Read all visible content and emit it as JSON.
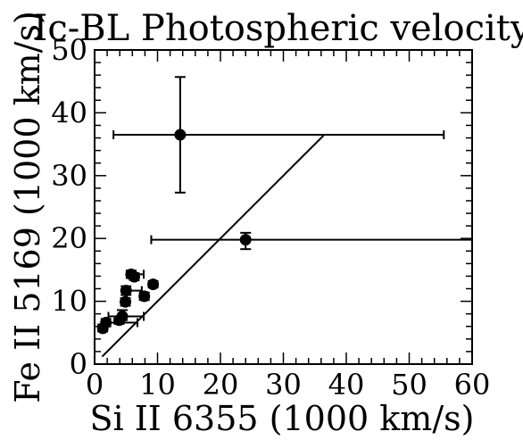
{
  "chart_data": {
    "type": "scatter",
    "title": "Ic-BL Photospheric velocity",
    "xlabel": "Si II 6355 (1000 km/s)",
    "ylabel": "Fe II 5169 (1000 km/s)",
    "xlim": [
      0,
      60
    ],
    "ylim": [
      0,
      50
    ],
    "x_ticks": [
      0,
      10,
      20,
      30,
      40,
      50,
      60
    ],
    "y_ticks": [
      0,
      10,
      20,
      30,
      40,
      50
    ],
    "x_tick_labels": [
      "0",
      "10",
      "20",
      "30",
      "40",
      "50",
      "60"
    ],
    "y_tick_labels": [
      "0",
      "10",
      "20",
      "30",
      "40",
      "50"
    ],
    "grid": false,
    "marker_color": "#000000",
    "points": [
      {
        "x": 13.6,
        "y": 36.5,
        "x_err": [
          3.0,
          55.5
        ],
        "y_err": [
          27.3,
          45.7
        ]
      },
      {
        "x": 24.0,
        "y": 19.8,
        "x_err": [
          9.0,
          60.0
        ],
        "y_err": [
          18.3,
          20.9
        ]
      },
      {
        "x": 5.8,
        "y": 14.3,
        "x_err": [
          5.3,
          7.8
        ],
        "y_err": [
          13.7,
          14.9
        ]
      },
      {
        "x": 6.3,
        "y": 13.9,
        "x_err": [
          5.8,
          7.0
        ],
        "y_err": [
          13.4,
          14.4
        ]
      },
      {
        "x": 9.3,
        "y": 12.7,
        "x_err": [
          8.8,
          9.8
        ],
        "y_err": [
          12.2,
          13.2
        ]
      },
      {
        "x": 5.0,
        "y": 11.7,
        "x_err": [
          4.4,
          7.5
        ],
        "y_err": [
          11.0,
          12.4
        ]
      },
      {
        "x": 7.9,
        "y": 10.8,
        "x_err": [
          7.3,
          8.5
        ],
        "y_err": [
          10.2,
          11.4
        ]
      },
      {
        "x": 4.9,
        "y": 9.9,
        "x_err": [
          4.4,
          5.5
        ],
        "y_err": [
          9.3,
          10.5
        ]
      },
      {
        "x": 4.4,
        "y": 7.6,
        "x_err": [
          2.2,
          7.8
        ],
        "y_err": [
          7.0,
          8.6
        ]
      },
      {
        "x": 3.9,
        "y": 7.0,
        "x_err": [
          3.4,
          4.5
        ],
        "y_err": [
          6.4,
          7.6
        ]
      },
      {
        "x": 1.8,
        "y": 6.6,
        "x_err": [
          1.3,
          6.8
        ],
        "y_err": [
          6.0,
          7.2
        ]
      },
      {
        "x": 1.3,
        "y": 5.7,
        "x_err": [
          0.8,
          1.8
        ],
        "y_err": [
          5.2,
          6.3
        ]
      }
    ],
    "line": {
      "x": [
        1.2,
        36.4
      ],
      "y": [
        1.2,
        36.4
      ]
    }
  }
}
